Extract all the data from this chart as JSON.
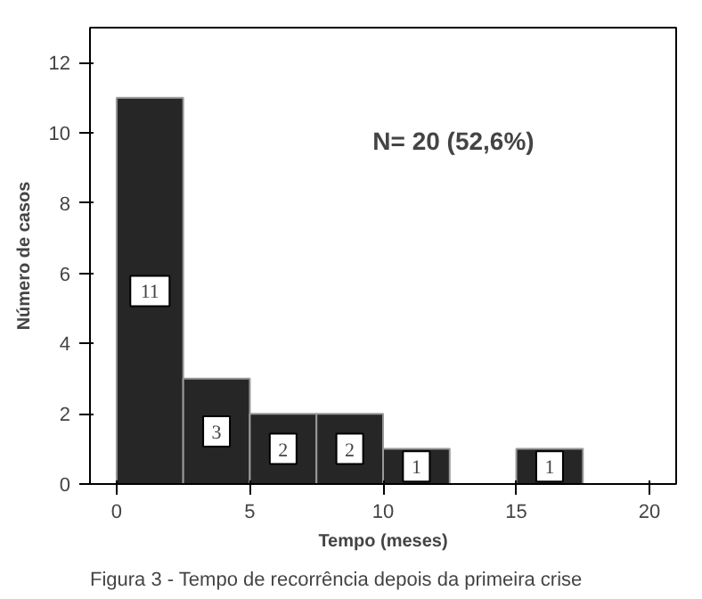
{
  "chart_data": {
    "type": "histogram",
    "xlabel": "Tempo (meses)",
    "ylabel": "Número de casos",
    "bins": [
      0,
      2.5,
      5,
      7.5,
      10,
      12.5,
      15,
      17.5
    ],
    "values": [
      11,
      3,
      2,
      2,
      1,
      0,
      1
    ],
    "value_labels": [
      "11",
      "3",
      "2",
      "2",
      "1",
      null,
      "1"
    ],
    "color": "#262626",
    "xlim": [
      -1,
      21
    ],
    "xticks": [
      0,
      5,
      10,
      15,
      20
    ],
    "ylim": [
      0,
      13
    ],
    "yticks": [
      0,
      2,
      4,
      6,
      8,
      10,
      12
    ],
    "grid": false,
    "annotations": [
      "N= 20 (52,6%)",
      "Figura 3 - Tempo de recorrência depois da primeira crise"
    ]
  }
}
